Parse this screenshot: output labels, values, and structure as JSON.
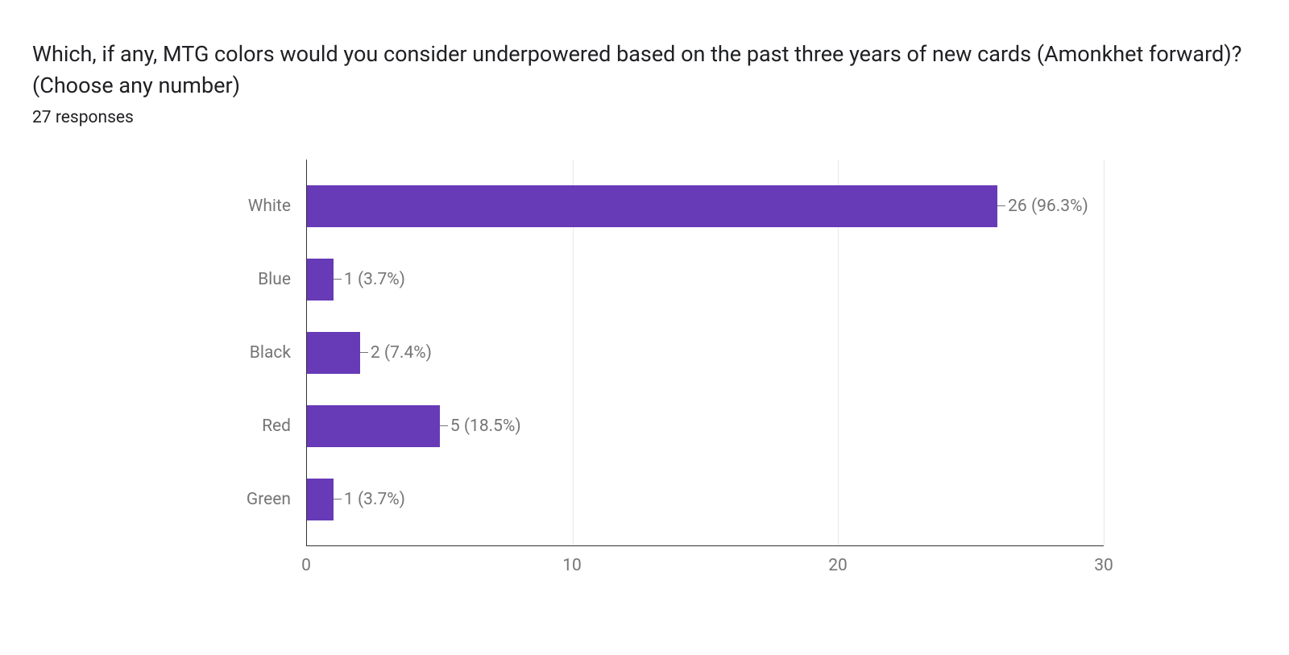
{
  "title": "Which, if any, MTG colors would you consider underpowered based on the past three years of new cards (Amonkhet forward)? (Choose any number)",
  "subtitle": "27 responses",
  "chart": {
    "type": "bar-horizontal",
    "bar_color": "#673ab7",
    "background_color": "#ffffff",
    "grid_color": "#e8e8e8",
    "axis_color": "#333333",
    "text_color": "#757575",
    "title_color": "#202124",
    "title_fontsize": 27,
    "label_fontsize": 21,
    "xlim": [
      0,
      30
    ],
    "xticks": [
      0,
      10,
      20,
      30
    ],
    "categories": [
      "White",
      "Blue",
      "Black",
      "Red",
      "Green"
    ],
    "values": [
      26,
      1,
      2,
      5,
      1
    ],
    "percentages": [
      "96.3%",
      "3.7%",
      "7.4%",
      "18.5%",
      "3.7%"
    ],
    "value_labels": [
      "26 (96.3%)",
      "1 (3.7%)",
      "2 (7.4%)",
      "5 (18.5%)",
      "1 (3.7%)"
    ]
  }
}
